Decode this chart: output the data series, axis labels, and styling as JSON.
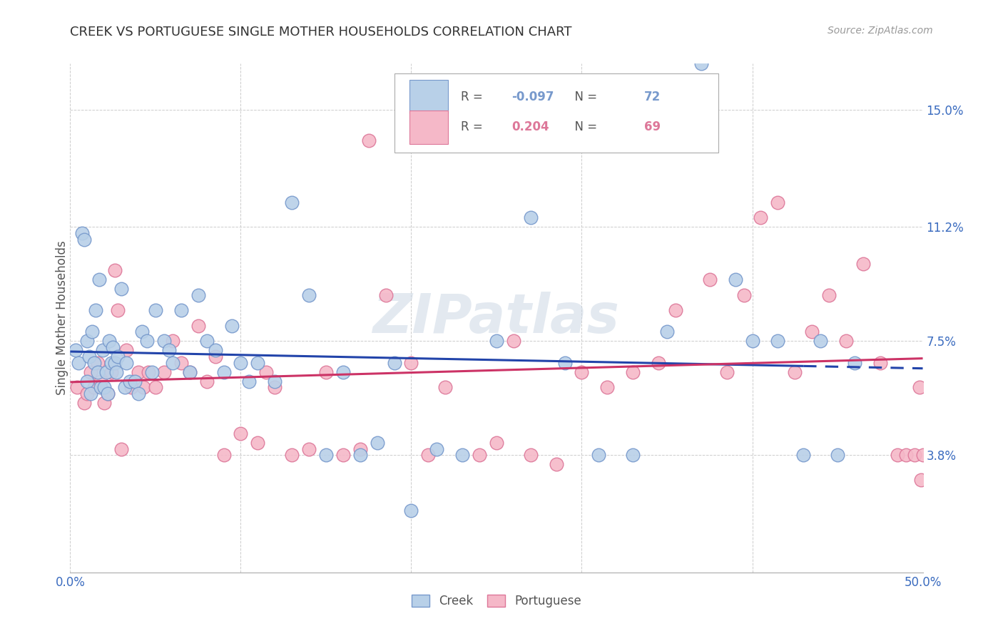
{
  "title": "CREEK VS PORTUGUESE SINGLE MOTHER HOUSEHOLDS CORRELATION CHART",
  "source": "Source: ZipAtlas.com",
  "ylabel": "Single Mother Households",
  "xlim": [
    0.0,
    0.5
  ],
  "ylim": [
    0.0,
    0.165
  ],
  "ytick_labels": [
    "3.8%",
    "7.5%",
    "11.2%",
    "15.0%"
  ],
  "ytick_values": [
    0.038,
    0.075,
    0.112,
    0.15
  ],
  "grid_color": "#cccccc",
  "creek_color": "#b8d0e8",
  "creek_edge_color": "#7799cc",
  "portuguese_color": "#f5b8c8",
  "portuguese_edge_color": "#dd7799",
  "creek_R": -0.097,
  "creek_N": 72,
  "portuguese_R": 0.204,
  "portuguese_N": 69,
  "creek_line_color": "#2244aa",
  "portuguese_line_color": "#cc3366",
  "watermark": "ZIPatlas",
  "creek_x": [
    0.003,
    0.005,
    0.007,
    0.008,
    0.01,
    0.01,
    0.011,
    0.012,
    0.013,
    0.014,
    0.015,
    0.016,
    0.017,
    0.018,
    0.019,
    0.02,
    0.021,
    0.022,
    0.023,
    0.024,
    0.025,
    0.026,
    0.027,
    0.028,
    0.03,
    0.032,
    0.033,
    0.035,
    0.038,
    0.04,
    0.042,
    0.045,
    0.048,
    0.05,
    0.055,
    0.058,
    0.06,
    0.065,
    0.07,
    0.075,
    0.08,
    0.085,
    0.09,
    0.095,
    0.1,
    0.105,
    0.11,
    0.12,
    0.13,
    0.14,
    0.15,
    0.16,
    0.17,
    0.18,
    0.19,
    0.2,
    0.215,
    0.23,
    0.25,
    0.27,
    0.29,
    0.31,
    0.33,
    0.35,
    0.37,
    0.39,
    0.4,
    0.415,
    0.43,
    0.44,
    0.45,
    0.46
  ],
  "creek_y": [
    0.072,
    0.068,
    0.11,
    0.108,
    0.075,
    0.062,
    0.07,
    0.058,
    0.078,
    0.068,
    0.085,
    0.065,
    0.095,
    0.06,
    0.072,
    0.06,
    0.065,
    0.058,
    0.075,
    0.068,
    0.073,
    0.068,
    0.065,
    0.07,
    0.092,
    0.06,
    0.068,
    0.062,
    0.062,
    0.058,
    0.078,
    0.075,
    0.065,
    0.085,
    0.075,
    0.072,
    0.068,
    0.085,
    0.065,
    0.09,
    0.075,
    0.072,
    0.065,
    0.08,
    0.068,
    0.062,
    0.068,
    0.062,
    0.12,
    0.09,
    0.038,
    0.065,
    0.038,
    0.042,
    0.068,
    0.02,
    0.04,
    0.038,
    0.075,
    0.115,
    0.068,
    0.038,
    0.038,
    0.078,
    0.165,
    0.095,
    0.075,
    0.075,
    0.038,
    0.075,
    0.038,
    0.068
  ],
  "portuguese_x": [
    0.004,
    0.008,
    0.01,
    0.012,
    0.014,
    0.016,
    0.018,
    0.02,
    0.022,
    0.024,
    0.026,
    0.028,
    0.03,
    0.033,
    0.036,
    0.04,
    0.043,
    0.046,
    0.05,
    0.055,
    0.06,
    0.065,
    0.07,
    0.075,
    0.08,
    0.085,
    0.09,
    0.1,
    0.11,
    0.115,
    0.12,
    0.13,
    0.14,
    0.15,
    0.16,
    0.17,
    0.175,
    0.185,
    0.2,
    0.21,
    0.22,
    0.24,
    0.25,
    0.26,
    0.27,
    0.285,
    0.3,
    0.315,
    0.33,
    0.345,
    0.355,
    0.365,
    0.375,
    0.385,
    0.395,
    0.405,
    0.415,
    0.425,
    0.435,
    0.445,
    0.455,
    0.465,
    0.475,
    0.485,
    0.49,
    0.495,
    0.498,
    0.499,
    0.5
  ],
  "portuguese_y": [
    0.06,
    0.055,
    0.058,
    0.065,
    0.06,
    0.068,
    0.062,
    0.055,
    0.058,
    0.065,
    0.098,
    0.085,
    0.04,
    0.072,
    0.06,
    0.065,
    0.06,
    0.065,
    0.06,
    0.065,
    0.075,
    0.068,
    0.065,
    0.08,
    0.062,
    0.07,
    0.038,
    0.045,
    0.042,
    0.065,
    0.06,
    0.038,
    0.04,
    0.065,
    0.038,
    0.04,
    0.14,
    0.09,
    0.068,
    0.038,
    0.06,
    0.038,
    0.042,
    0.075,
    0.038,
    0.035,
    0.065,
    0.06,
    0.065,
    0.068,
    0.085,
    0.14,
    0.095,
    0.065,
    0.09,
    0.115,
    0.12,
    0.065,
    0.078,
    0.09,
    0.075,
    0.1,
    0.068,
    0.038,
    0.038,
    0.038,
    0.06,
    0.03,
    0.038
  ]
}
